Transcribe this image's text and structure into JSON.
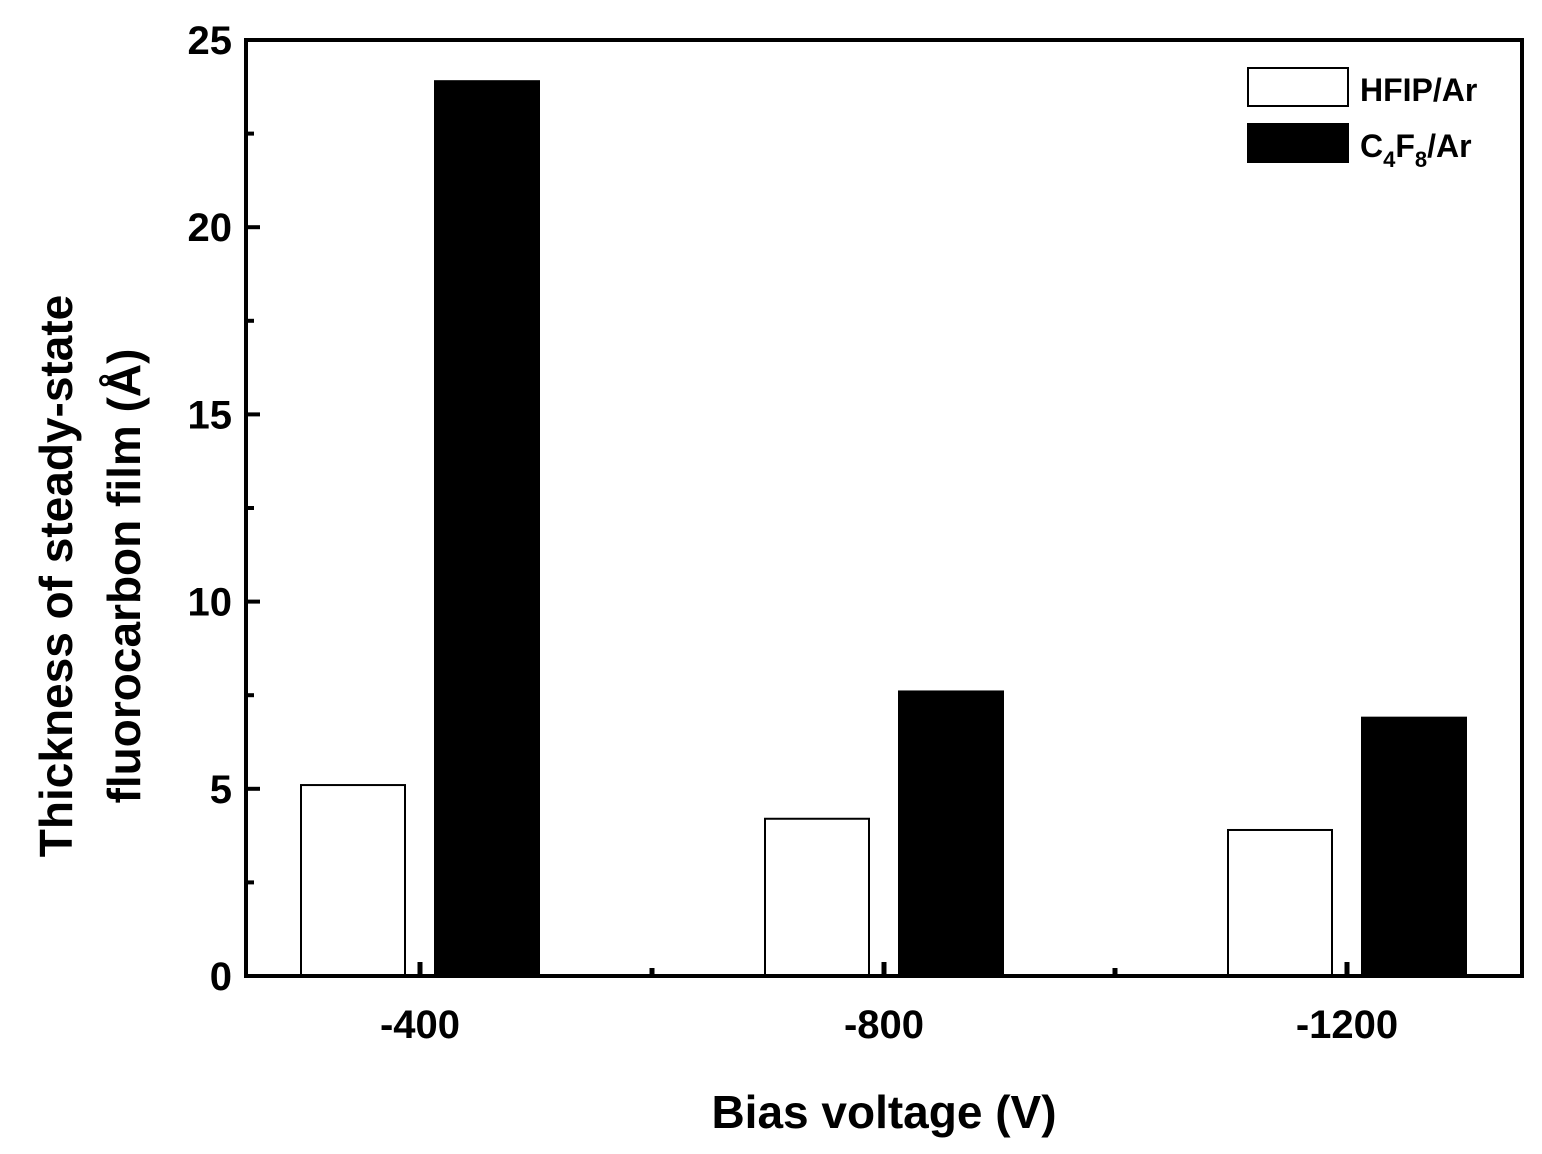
{
  "chart_data": {
    "type": "bar",
    "title": "",
    "xlabel": "Bias voltage (V)",
    "ylabel_lines": [
      "Thickness of steady-state",
      "fluorocarbon film (Å)"
    ],
    "categories": [
      "-400",
      "-800",
      "-1200"
    ],
    "series": [
      {
        "name": "HFIP/Ar",
        "values": [
          5.1,
          4.2,
          3.9
        ],
        "fill": "#ffffff",
        "stroke": "#000000"
      },
      {
        "name": "C4F8/Ar",
        "values": [
          23.9,
          7.6,
          6.9
        ],
        "fill": "#000000",
        "stroke": "#000000"
      }
    ],
    "legend": {
      "position": "top-right",
      "entries": [
        {
          "label": "HFIP/Ar"
        },
        {
          "label_parts": [
            "C",
            "4",
            "F",
            "8",
            "/Ar"
          ]
        }
      ]
    },
    "ylim": [
      0,
      25
    ],
    "yticks": [
      "0",
      "5",
      "10",
      "15",
      "20",
      "25"
    ],
    "grid": false
  }
}
